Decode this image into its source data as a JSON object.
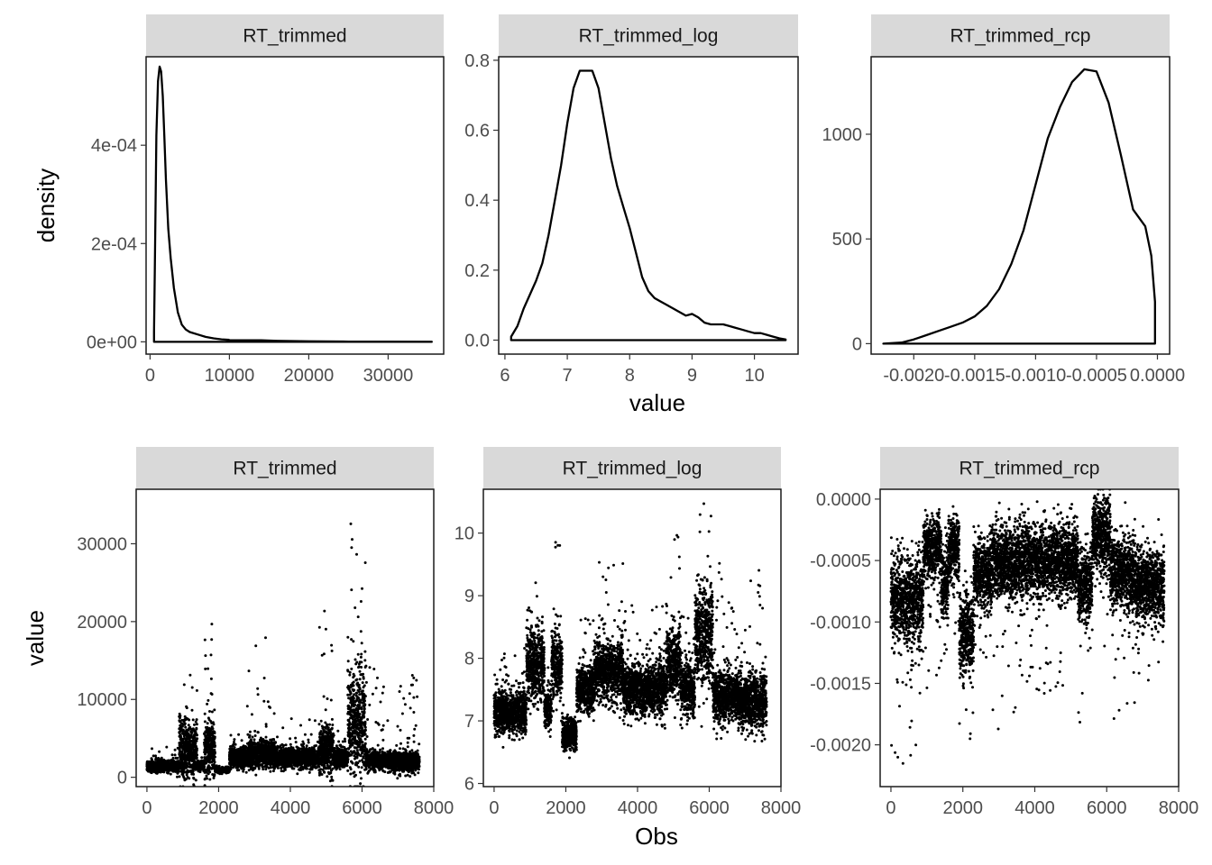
{
  "chart_data": [
    {
      "type": "line",
      "facet": "RT_trimmed",
      "title": "",
      "xlabel": "",
      "ylabel": "density",
      "x_ticks": [
        0,
        10000,
        20000,
        30000
      ],
      "x_tick_labels": [
        "0",
        "10000",
        "20000",
        "30000"
      ],
      "y_ticks": [
        0,
        0.0002,
        0.0004
      ],
      "y_tick_labels": [
        "0e+00",
        "2e-04",
        "4e-04"
      ],
      "xlim": [
        -500,
        37000
      ],
      "ylim": [
        -2.5e-05,
        0.00058
      ],
      "grid": false,
      "x": [
        500,
        600,
        800,
        1000,
        1200,
        1400,
        1600,
        1800,
        2000,
        2300,
        2600,
        3000,
        3500,
        4000,
        4500,
        5000,
        6000,
        7000,
        8000,
        9000,
        10000,
        12000,
        14000,
        16000,
        20000,
        25000,
        30000,
        35500
      ],
      "y": [
        2e-05,
        0.00015,
        0.00042,
        0.00053,
        0.00056,
        0.00055,
        0.0005,
        0.00042,
        0.00033,
        0.00023,
        0.00017,
        0.00011,
        6e-05,
        3.5e-05,
        2.5e-05,
        2e-05,
        1.5e-05,
        1e-05,
        7e-06,
        5e-06,
        4e-06,
        3e-06,
        3e-06,
        2e-06,
        1e-06,
        5e-07,
        3e-07,
        2e-07
      ]
    },
    {
      "type": "line",
      "facet": "RT_trimmed_log",
      "title": "",
      "xlabel": "value",
      "ylabel": "",
      "x_ticks": [
        6,
        7,
        8,
        9,
        10
      ],
      "x_tick_labels": [
        "6",
        "7",
        "8",
        "9",
        "10"
      ],
      "y_ticks": [
        0,
        0.2,
        0.4,
        0.6,
        0.8
      ],
      "y_tick_labels": [
        "0.0",
        "0.2",
        "0.4",
        "0.6",
        "0.8"
      ],
      "xlim": [
        5.9,
        10.7
      ],
      "ylim": [
        -0.04,
        0.81
      ],
      "grid": false,
      "x": [
        6.1,
        6.2,
        6.3,
        6.4,
        6.5,
        6.6,
        6.7,
        6.8,
        6.9,
        7.0,
        7.1,
        7.2,
        7.3,
        7.4,
        7.5,
        7.6,
        7.7,
        7.8,
        7.9,
        8.0,
        8.1,
        8.2,
        8.3,
        8.4,
        8.5,
        8.6,
        8.7,
        8.8,
        8.9,
        9.0,
        9.1,
        9.2,
        9.3,
        9.4,
        9.5,
        9.6,
        9.7,
        9.8,
        9.9,
        10.0,
        10.1,
        10.2,
        10.3,
        10.4,
        10.5
      ],
      "y": [
        0.01,
        0.04,
        0.09,
        0.13,
        0.17,
        0.22,
        0.3,
        0.4,
        0.5,
        0.62,
        0.72,
        0.77,
        0.77,
        0.77,
        0.72,
        0.62,
        0.52,
        0.44,
        0.38,
        0.32,
        0.25,
        0.18,
        0.14,
        0.12,
        0.11,
        0.1,
        0.09,
        0.08,
        0.07,
        0.075,
        0.065,
        0.05,
        0.045,
        0.045,
        0.045,
        0.04,
        0.035,
        0.03,
        0.025,
        0.02,
        0.02,
        0.015,
        0.01,
        0.005,
        0.002
      ]
    },
    {
      "type": "line",
      "facet": "RT_trimmed_rcp",
      "title": "",
      "xlabel": "",
      "ylabel": "",
      "x_ticks": [
        -0.002,
        -0.0015,
        -0.001,
        -0.0005,
        0
      ],
      "x_tick_labels": [
        "-0.0020",
        "-0.0015",
        "-0.0010",
        "-0.0005",
        "0.0000"
      ],
      "y_ticks": [
        0,
        500,
        1000
      ],
      "y_tick_labels": [
        "0",
        "500",
        "1000"
      ],
      "xlim": [
        -0.00235,
        0.0001
      ],
      "ylim": [
        -50,
        1370
      ],
      "grid": false,
      "x": [
        -0.00225,
        -0.0021,
        -0.002,
        -0.0019,
        -0.0018,
        -0.0017,
        -0.0016,
        -0.0015,
        -0.0014,
        -0.0013,
        -0.0012,
        -0.0011,
        -0.001,
        -0.0009,
        -0.0008,
        -0.0007,
        -0.0006,
        -0.0005,
        -0.0004,
        -0.0003,
        -0.0002,
        -0.0001,
        -5e-05,
        -2e-05
      ],
      "y": [
        0,
        5,
        20,
        40,
        60,
        80,
        100,
        130,
        180,
        260,
        380,
        540,
        760,
        980,
        1130,
        1250,
        1310,
        1300,
        1150,
        900,
        640,
        560,
        420,
        200
      ]
    },
    {
      "type": "scatter",
      "facet": "RT_trimmed",
      "title": "",
      "xlabel": "",
      "ylabel": "value",
      "x_ticks": [
        0,
        2000,
        4000,
        6000,
        8000
      ],
      "x_tick_labels": [
        "0",
        "2000",
        "4000",
        "6000",
        "8000"
      ],
      "y_ticks": [
        0,
        10000,
        20000,
        30000
      ],
      "y_tick_labels": [
        "0",
        "10000",
        "20000",
        "30000"
      ],
      "xlim": [
        -300,
        8000
      ],
      "ylim": [
        -1200,
        37000
      ],
      "grid": false,
      "n_points": 7600,
      "segments": [
        {
          "x0": 0,
          "x1": 900,
          "center": 1400,
          "spread": 700,
          "peak": 4000
        },
        {
          "x0": 900,
          "x1": 1400,
          "center": 3500,
          "spread": 3500,
          "peak": 13800
        },
        {
          "x0": 1400,
          "x1": 1600,
          "center": 1500,
          "spread": 600,
          "peak": 3000
        },
        {
          "x0": 1600,
          "x1": 1900,
          "center": 3800,
          "spread": 3500,
          "peak": 20000
        },
        {
          "x0": 1900,
          "x1": 2300,
          "center": 900,
          "spread": 300,
          "peak": 1500
        },
        {
          "x0": 2300,
          "x1": 2800,
          "center": 2500,
          "spread": 1200,
          "peak": 6000
        },
        {
          "x0": 2800,
          "x1": 3600,
          "center": 3000,
          "spread": 1800,
          "peak": 18700
        },
        {
          "x0": 3600,
          "x1": 4800,
          "center": 2500,
          "spread": 1200,
          "peak": 8000
        },
        {
          "x0": 4800,
          "x1": 5200,
          "center": 3500,
          "spread": 3000,
          "peak": 23500
        },
        {
          "x0": 5200,
          "x1": 5600,
          "center": 2500,
          "spread": 1200,
          "peak": 6000
        },
        {
          "x0": 5600,
          "x1": 6100,
          "center": 7000,
          "spread": 6500,
          "peak": 35400
        },
        {
          "x0": 6100,
          "x1": 6800,
          "center": 2200,
          "spread": 1100,
          "peak": 14300
        },
        {
          "x0": 6800,
          "x1": 7600,
          "center": 2000,
          "spread": 1200,
          "peak": 13700
        }
      ]
    },
    {
      "type": "scatter",
      "facet": "RT_trimmed_log",
      "title": "",
      "xlabel": "Obs",
      "ylabel": "",
      "x_ticks": [
        0,
        2000,
        4000,
        6000,
        8000
      ],
      "x_tick_labels": [
        "0",
        "2000",
        "4000",
        "6000",
        "8000"
      ],
      "y_ticks": [
        6,
        7,
        8,
        9,
        10
      ],
      "y_tick_labels": [
        "6",
        "7",
        "8",
        "9",
        "10"
      ],
      "xlim": [
        -300,
        8000
      ],
      "ylim": [
        5.95,
        10.7
      ],
      "grid": false,
      "n_points": 7600,
      "segments": [
        {
          "x0": 0,
          "x1": 900,
          "center": 7.15,
          "spread": 0.35,
          "peak": 8.3
        },
        {
          "x0": 900,
          "x1": 1400,
          "center": 7.9,
          "spread": 0.55,
          "peak": 9.5
        },
        {
          "x0": 1400,
          "x1": 1600,
          "center": 7.2,
          "spread": 0.3,
          "peak": 8.0
        },
        {
          "x0": 1600,
          "x1": 1900,
          "center": 7.9,
          "spread": 0.55,
          "peak": 9.9
        },
        {
          "x0": 1900,
          "x1": 2300,
          "center": 6.8,
          "spread": 0.25,
          "peak": 7.3
        },
        {
          "x0": 2300,
          "x1": 2800,
          "center": 7.5,
          "spread": 0.4,
          "peak": 8.7
        },
        {
          "x0": 2800,
          "x1": 3600,
          "center": 7.8,
          "spread": 0.5,
          "peak": 9.8
        },
        {
          "x0": 3600,
          "x1": 4800,
          "center": 7.5,
          "spread": 0.4,
          "peak": 9.0
        },
        {
          "x0": 4800,
          "x1": 5200,
          "center": 7.9,
          "spread": 0.6,
          "peak": 10.1
        },
        {
          "x0": 5200,
          "x1": 5600,
          "center": 7.5,
          "spread": 0.4,
          "peak": 8.7
        },
        {
          "x0": 5600,
          "x1": 6100,
          "center": 8.4,
          "spread": 0.75,
          "peak": 10.5
        },
        {
          "x0": 6100,
          "x1": 6800,
          "center": 7.4,
          "spread": 0.4,
          "peak": 9.6
        },
        {
          "x0": 6800,
          "x1": 7600,
          "center": 7.3,
          "spread": 0.45,
          "peak": 9.5
        }
      ]
    },
    {
      "type": "scatter",
      "facet": "RT_trimmed_rcp",
      "title": "",
      "xlabel": "",
      "ylabel": "",
      "x_ticks": [
        0,
        2000,
        4000,
        6000,
        8000
      ],
      "x_tick_labels": [
        "0",
        "2000",
        "4000",
        "6000",
        "8000"
      ],
      "y_ticks": [
        -0.002,
        -0.0015,
        -0.001,
        -0.0005,
        0
      ],
      "y_tick_labels": [
        "-0.0020",
        "-0.0015",
        "-0.0010",
        "-0.0005",
        "0.0000"
      ],
      "xlim": [
        -300,
        8000
      ],
      "ylim": [
        -0.00234,
        8e-05
      ],
      "grid": false,
      "n_points": 7600,
      "segments": [
        {
          "x0": 0,
          "x1": 900,
          "center": -0.0008,
          "spread": 0.00035,
          "peak": -0.0022
        },
        {
          "x0": 900,
          "x1": 1400,
          "center": -0.0004,
          "spread": 0.00025,
          "peak": -0.0016
        },
        {
          "x0": 1400,
          "x1": 1600,
          "center": -0.0007,
          "spread": 0.0003,
          "peak": -0.0015
        },
        {
          "x0": 1600,
          "x1": 1900,
          "center": -0.0004,
          "spread": 0.00025,
          "peak": -0.0012
        },
        {
          "x0": 1900,
          "x1": 2300,
          "center": -0.0011,
          "spread": 0.00035,
          "peak": -0.002
        },
        {
          "x0": 2300,
          "x1": 2800,
          "center": -0.0006,
          "spread": 0.0003,
          "peak": -0.0014
        },
        {
          "x0": 2800,
          "x1": 3600,
          "center": -0.0005,
          "spread": 0.0003,
          "peak": -0.0019
        },
        {
          "x0": 3600,
          "x1": 4800,
          "center": -0.0005,
          "spread": 0.0003,
          "peak": -0.0016
        },
        {
          "x0": 4800,
          "x1": 5200,
          "center": -0.0005,
          "spread": 0.0003,
          "peak": -0.0013
        },
        {
          "x0": 5200,
          "x1": 5600,
          "center": -0.0007,
          "spread": 0.0003,
          "peak": -0.0019
        },
        {
          "x0": 5600,
          "x1": 6100,
          "center": -0.0003,
          "spread": 0.0003,
          "peak": -0.0012
        },
        {
          "x0": 6100,
          "x1": 6800,
          "center": -0.0006,
          "spread": 0.0003,
          "peak": -0.0018
        },
        {
          "x0": 6800,
          "x1": 7600,
          "center": -0.0007,
          "spread": 0.0003,
          "peak": -0.0015
        }
      ]
    }
  ],
  "colors": {
    "strip_background": "#d9d9d9",
    "panel_border": "#1a1a1a",
    "ink": "#000000",
    "tick_text": "#4d4d4d"
  }
}
